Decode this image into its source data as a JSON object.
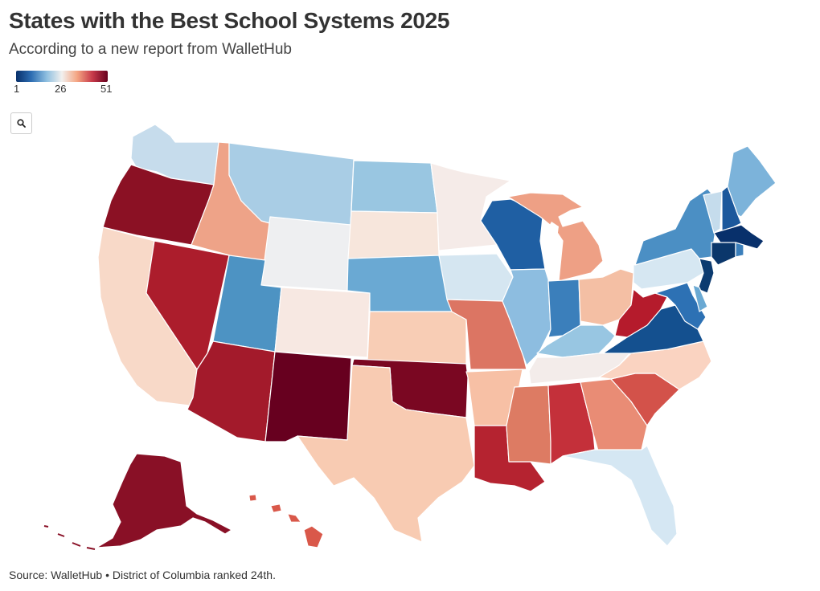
{
  "title": "States with the Best School Systems 2025",
  "subtitle": "According to a new report from WalletHub",
  "legend": {
    "min_label": "1",
    "mid_label": "26",
    "max_label": "51",
    "colors": [
      "#08306b",
      "#2e6eb3",
      "#8ebfe0",
      "#f2f0ee",
      "#f4a582",
      "#c7394a",
      "#67001f"
    ]
  },
  "zoom": {
    "icon": "search-icon"
  },
  "source": "Source: WalletHub • District of Columbia ranked 24th.",
  "regions": [
    {
      "id": "WA",
      "color": "#c6dcec"
    },
    {
      "id": "OR",
      "color": "#8b1124"
    },
    {
      "id": "CA",
      "color": "#f8d9c8"
    },
    {
      "id": "NV",
      "color": "#ac1d2c"
    },
    {
      "id": "ID",
      "color": "#eea388"
    },
    {
      "id": "MT",
      "color": "#a9cde5"
    },
    {
      "id": "WY",
      "color": "#eeeff1"
    },
    {
      "id": "UT",
      "color": "#4d93c3"
    },
    {
      "id": "AZ",
      "color": "#a31a2b"
    },
    {
      "id": "CO",
      "color": "#f7e8e2"
    },
    {
      "id": "NM",
      "color": "#67001f"
    },
    {
      "id": "ND",
      "color": "#99c6e1"
    },
    {
      "id": "SD",
      "color": "#f7e6dc"
    },
    {
      "id": "NE",
      "color": "#6aa9d3"
    },
    {
      "id": "KS",
      "color": "#f8cdb5"
    },
    {
      "id": "OK",
      "color": "#7a0722"
    },
    {
      "id": "TX",
      "color": "#f8cbb2"
    },
    {
      "id": "MN",
      "color": "#f5ebe8"
    },
    {
      "id": "IA",
      "color": "#d5e6f1"
    },
    {
      "id": "MO",
      "color": "#dc7563"
    },
    {
      "id": "AR",
      "color": "#f7c0a5"
    },
    {
      "id": "LA",
      "color": "#b52330"
    },
    {
      "id": "WI",
      "color": "#1f5fa3"
    },
    {
      "id": "IL",
      "color": "#8dbde0"
    },
    {
      "id": "MI",
      "color": "#eea085"
    },
    {
      "id": "IN",
      "color": "#3b7fbb"
    },
    {
      "id": "OH",
      "color": "#f4bfa4"
    },
    {
      "id": "KY",
      "color": "#98c6e2"
    },
    {
      "id": "TN",
      "color": "#f3ecea"
    },
    {
      "id": "MS",
      "color": "#dd7b63"
    },
    {
      "id": "AL",
      "color": "#c4303a"
    },
    {
      "id": "GA",
      "color": "#e98c75"
    },
    {
      "id": "FL",
      "color": "#d5e7f3"
    },
    {
      "id": "SC",
      "color": "#d3524a"
    },
    {
      "id": "NC",
      "color": "#fad3c1"
    },
    {
      "id": "VA",
      "color": "#14508f"
    },
    {
      "id": "WV",
      "color": "#b51b2c"
    },
    {
      "id": "PA",
      "color": "#d6e7f2"
    },
    {
      "id": "NY",
      "color": "#4b8fc4"
    },
    {
      "id": "NJ",
      "color": "#0c3b70"
    },
    {
      "id": "MD",
      "color": "#2d71b4"
    },
    {
      "id": "DE",
      "color": "#6aa9d3"
    },
    {
      "id": "VT",
      "color": "#c5dcec"
    },
    {
      "id": "NH",
      "color": "#1c589c"
    },
    {
      "id": "ME",
      "color": "#7cb3da"
    },
    {
      "id": "MA",
      "color": "#08306b"
    },
    {
      "id": "CT",
      "color": "#0b376b"
    },
    {
      "id": "RI",
      "color": "#3b7fbb"
    },
    {
      "id": "AK",
      "color": "#891026"
    },
    {
      "id": "HI",
      "color": "#d9584a"
    }
  ]
}
